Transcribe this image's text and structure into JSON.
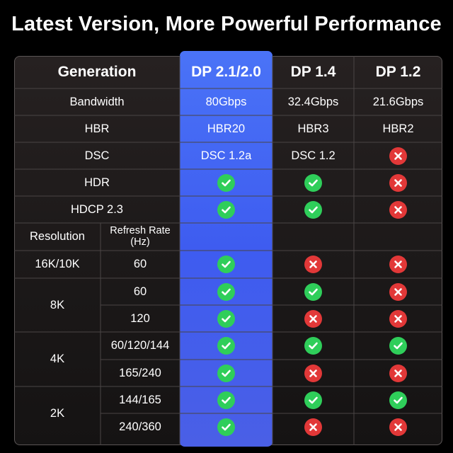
{
  "title": "Latest Version, More Powerful Performance",
  "colors": {
    "check": "#2fce5a",
    "cross": "#e23838",
    "highlight_column": "#4466f3"
  },
  "headers": [
    "Generation",
    "DP 2.1/2.0",
    "DP 1.4",
    "DP 1.2"
  ],
  "spec_rows": [
    {
      "label": "Bandwidth",
      "values": [
        "80Gbps",
        "32.4Gbps",
        "21.6Gbps"
      ]
    },
    {
      "label": "HBR",
      "values": [
        "HBR20",
        "HBR3",
        "HBR2"
      ]
    },
    {
      "label": "DSC",
      "values": [
        "DSC 1.2a",
        "DSC 1.2",
        "cross"
      ]
    },
    {
      "label": "HDR",
      "values": [
        "check",
        "check",
        "cross"
      ]
    },
    {
      "label": "HDCP 2.3",
      "values": [
        "check",
        "check",
        "cross"
      ]
    }
  ],
  "sub_header": {
    "resolution": "Resolution",
    "refresh_rate": "Refresh Rate (Hz)"
  },
  "resolution_groups": [
    {
      "resolution": "16K/10K",
      "rows": [
        {
          "refresh": "60",
          "values": [
            "check",
            "cross",
            "cross"
          ]
        }
      ]
    },
    {
      "resolution": "8K",
      "rows": [
        {
          "refresh": "60",
          "values": [
            "check",
            "check",
            "cross"
          ]
        },
        {
          "refresh": "120",
          "values": [
            "check",
            "cross",
            "cross"
          ]
        }
      ]
    },
    {
      "resolution": "4K",
      "rows": [
        {
          "refresh": "60/120/144",
          "values": [
            "check",
            "check",
            "check"
          ]
        },
        {
          "refresh": "165/240",
          "values": [
            "check",
            "cross",
            "cross"
          ]
        }
      ]
    },
    {
      "resolution": "2K",
      "rows": [
        {
          "refresh": "144/165",
          "values": [
            "check",
            "check",
            "check"
          ]
        },
        {
          "refresh": "240/360",
          "values": [
            "check",
            "cross",
            "cross"
          ]
        }
      ]
    }
  ]
}
